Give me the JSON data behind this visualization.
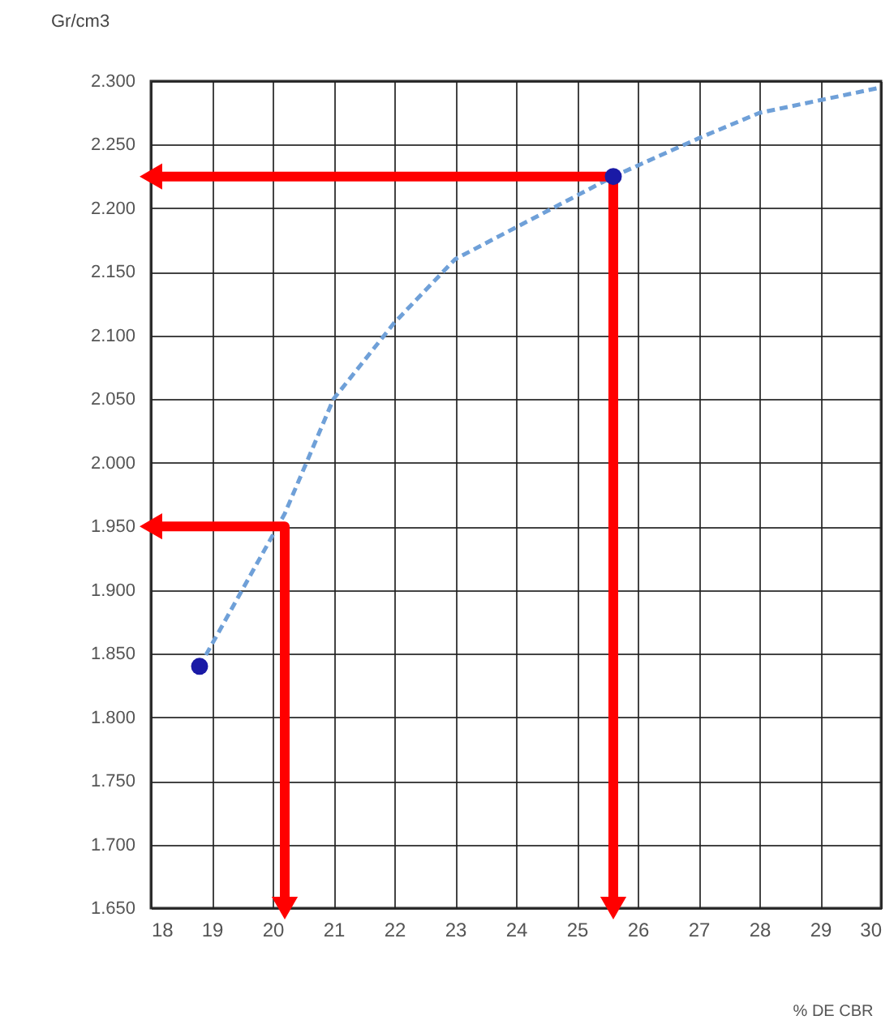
{
  "chart_data": {
    "type": "line",
    "xlabel": "% DE CBR",
    "ylabel": "Gr/cm3",
    "xlim": [
      18,
      30
    ],
    "xticks": [
      18,
      19,
      20,
      21,
      22,
      23,
      24,
      25,
      26,
      27,
      28,
      29,
      30
    ],
    "ylim": [
      1.65,
      2.3
    ],
    "yticks": [
      {
        "value": 1.65,
        "label": "1.650"
      },
      {
        "value": 1.7,
        "label": "1.700"
      },
      {
        "value": 1.75,
        "label": "1.750"
      },
      {
        "value": 1.8,
        "label": "1.800"
      },
      {
        "value": 1.85,
        "label": "1.850"
      },
      {
        "value": 1.9,
        "label": "1.900"
      },
      {
        "value": 1.95,
        "label": "1.950"
      },
      {
        "value": 2.0,
        "label": "2.000"
      },
      {
        "value": 2.05,
        "label": "2.050"
      },
      {
        "value": 2.1,
        "label": "2.100"
      },
      {
        "value": 2.15,
        "label": "2.150"
      },
      {
        "value": 2.2,
        "label": "2.200"
      },
      {
        "value": 2.25,
        "label": "2.250"
      },
      {
        "value": 2.3,
        "label": "2.300"
      }
    ],
    "grid": true,
    "series": [
      {
        "type": "line",
        "color": "#6fa0d8",
        "line_style": "dashed",
        "x": [
          18.8,
          19.5,
          20.2,
          21,
          22,
          23,
          24,
          25.6,
          27,
          28,
          29,
          30
        ],
        "values": [
          1.84,
          1.9,
          1.96,
          2.05,
          2.11,
          2.16,
          2.185,
          2.225,
          2.255,
          2.275,
          2.285,
          2.295
        ]
      },
      {
        "type": "scatter",
        "color": "#1a1aa6",
        "marker": "circle",
        "x": [
          18.8,
          25.6
        ],
        "values": [
          1.84,
          2.225
        ]
      },
      {
        "type": "line",
        "color": "#ff0000",
        "line_style": "solid",
        "marker": "triangle",
        "x": [
          18,
          20.2,
          20.2
        ],
        "values": [
          1.95,
          1.95,
          1.65
        ]
      },
      {
        "type": "line",
        "color": "#ff0000",
        "line_style": "solid",
        "marker": "triangle",
        "x": [
          18,
          25.6,
          25.6
        ],
        "values": [
          2.225,
          2.225,
          1.65
        ]
      }
    ]
  }
}
